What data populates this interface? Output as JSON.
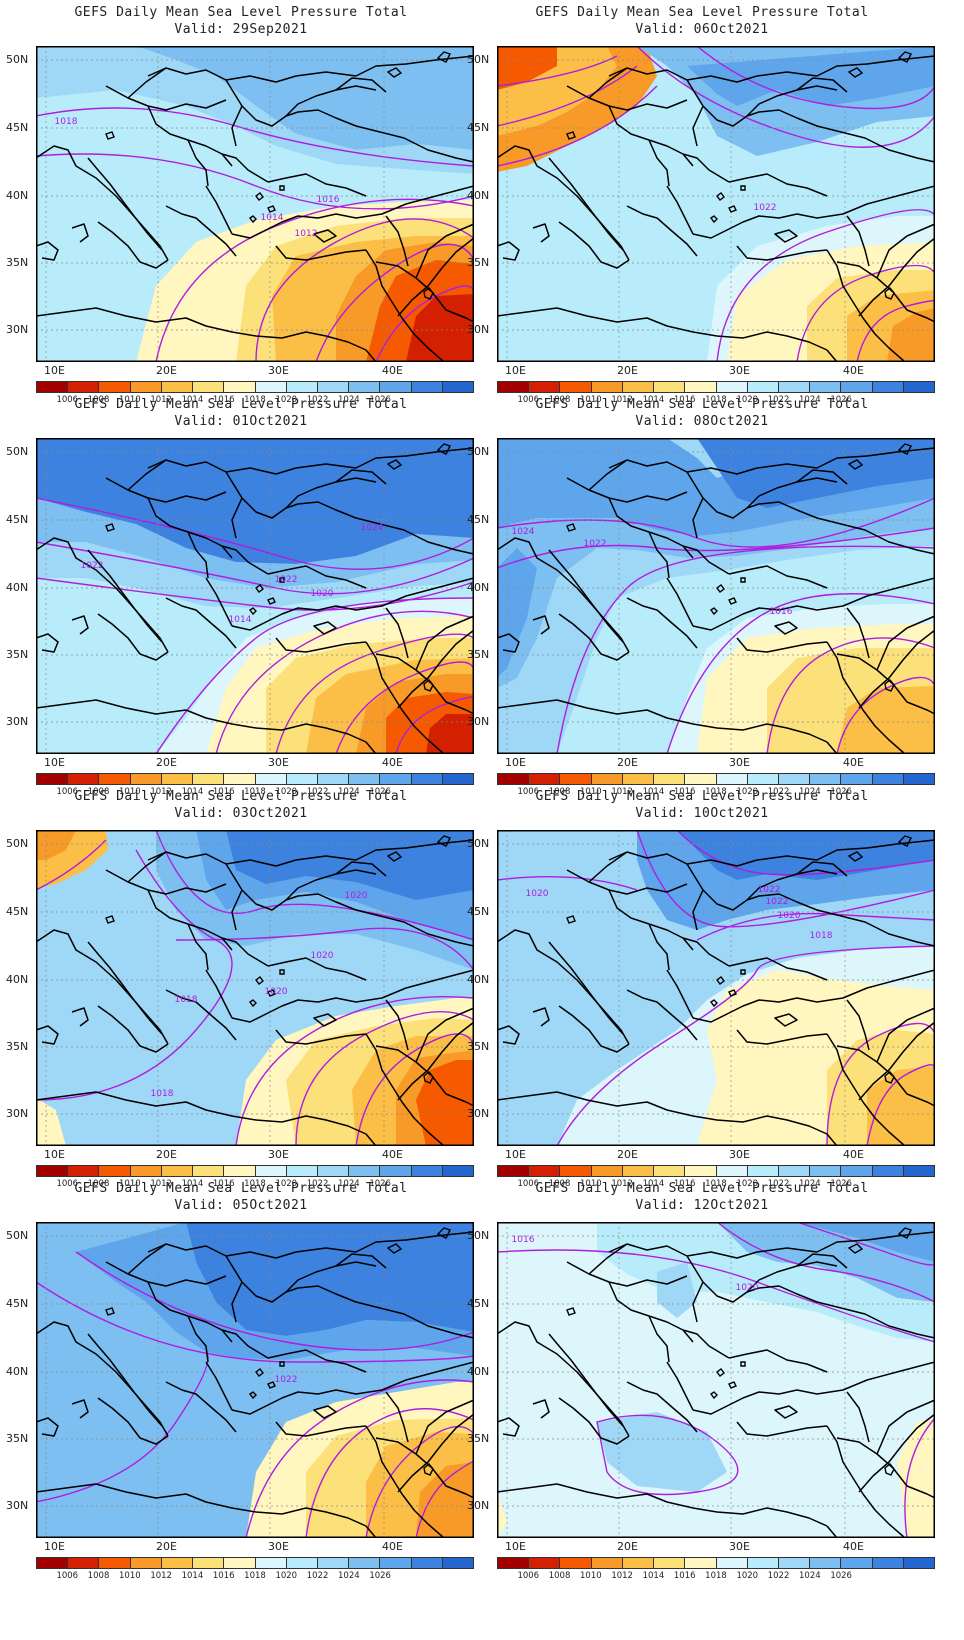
{
  "title_main": "GEFS Daily Mean Sea Level Pressure Total",
  "panels": [
    {
      "valid": "Valid: 29Sep2021",
      "fill": "#b9ecfb",
      "labels": [
        {
          "t": "1018"
        },
        {
          "t": "1016"
        },
        {
          "t": "1014"
        },
        {
          "t": "1012"
        }
      ]
    },
    {
      "valid": "Valid: 06Oct2021",
      "fill": "#b9ecfb",
      "labels": [
        {
          "t": "1022"
        }
      ]
    },
    {
      "valid": "Valid: 01Oct2021",
      "fill": "#5fa5ec",
      "labels": [
        {
          "t": "1024"
        },
        {
          "t": "1022"
        },
        {
          "t": "1022"
        },
        {
          "t": "1020"
        },
        {
          "t": "1014"
        }
      ]
    },
    {
      "valid": "Valid: 08Oct2021",
      "fill": "#9fd8f7",
      "labels": [
        {
          "t": "1024"
        },
        {
          "t": "1022"
        },
        {
          "t": "1016"
        }
      ]
    },
    {
      "valid": "Valid: 03Oct2021",
      "fill": "#9fd8f7",
      "labels": [
        {
          "t": "1020"
        },
        {
          "t": "1020"
        },
        {
          "t": "1018"
        },
        {
          "t": "1020"
        },
        {
          "t": "1018"
        }
      ]
    },
    {
      "valid": "Valid: 10Oct2021",
      "fill": "#9fd8f7",
      "labels": [
        {
          "t": "1020"
        },
        {
          "t": "1022"
        },
        {
          "t": "1022"
        },
        {
          "t": "1020"
        },
        {
          "t": "1018"
        }
      ]
    },
    {
      "valid": "Valid: 05Oct2021",
      "fill": "#7dbff1",
      "labels": [
        {
          "t": "1022"
        }
      ]
    },
    {
      "valid": "Valid: 12Oct2021",
      "fill": "#dcf6fc",
      "labels": [
        {
          "t": "1016"
        },
        {
          "t": "1020"
        }
      ]
    }
  ],
  "lat_labels": [
    "50N",
    "45N",
    "40N",
    "35N",
    "30N"
  ],
  "lon_labels": [
    "10E",
    "20E",
    "30E",
    "40E"
  ],
  "colorbar": {
    "colors": [
      "#a50000",
      "#d22000",
      "#f55a00",
      "#f89a28",
      "#fbbe46",
      "#fce07a",
      "#fff6c0",
      "#dcf6fc",
      "#b9ecfb",
      "#9fd8f7",
      "#7dbff1",
      "#5fa5ec",
      "#3d82de",
      "#2366d0"
    ],
    "levels": [
      "1006",
      "1008",
      "1010",
      "1012",
      "1014",
      "1016",
      "1018",
      "1020",
      "1022",
      "1024",
      "1026"
    ]
  }
}
